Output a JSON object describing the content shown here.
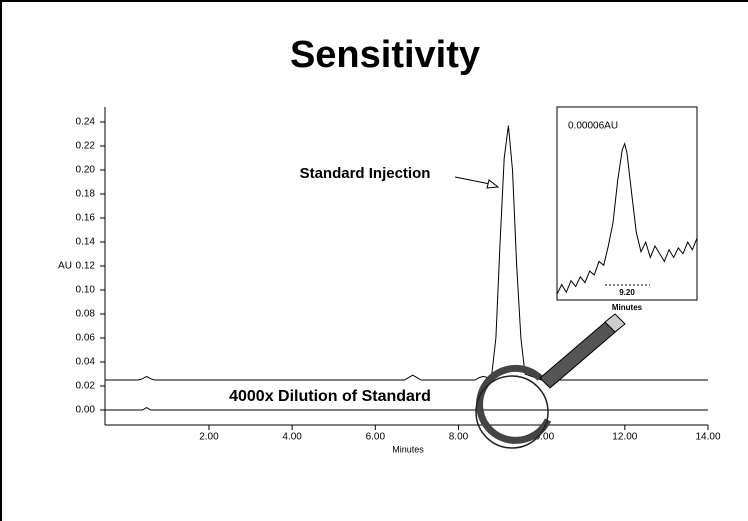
{
  "chart_data": [
    {
      "type": "line",
      "title": "Sensitivity",
      "xlabel": "Minutes",
      "ylabel": "AU",
      "annotations": [
        "Standard Injection",
        "4000x Dilution of Standard"
      ],
      "xlim": [
        -0.5,
        14.0
      ],
      "ylim": [
        -0.0125,
        0.2525
      ],
      "xticks": [
        {
          "value": 2,
          "label": "2.00"
        },
        {
          "value": 4,
          "label": "4.00"
        },
        {
          "value": 6,
          "label": "6.00"
        },
        {
          "value": 8,
          "label": "8.00"
        },
        {
          "value": 10,
          "label": "10.00"
        },
        {
          "value": 12,
          "label": "12.00"
        },
        {
          "value": 14,
          "label": "14.00"
        }
      ],
      "yticks": [
        {
          "value": 0,
          "label": "0.00"
        },
        {
          "value": 0.02,
          "label": "0.02"
        },
        {
          "value": 0.04,
          "label": "0.04"
        },
        {
          "value": 0.06,
          "label": "0.06"
        },
        {
          "value": 0.08,
          "label": "0.08"
        },
        {
          "value": 0.1,
          "label": "0.10"
        },
        {
          "value": 0.12,
          "label": "0.12"
        },
        {
          "value": 0.14,
          "label": "0.14"
        },
        {
          "value": 0.16,
          "label": "0.16"
        },
        {
          "value": 0.18,
          "label": "0.18"
        },
        {
          "value": 0.2,
          "label": "0.20"
        },
        {
          "value": 0.22,
          "label": "0.22"
        },
        {
          "value": 0.24,
          "label": "0.24"
        }
      ],
      "series": [
        {
          "color": "#000000",
          "x": [
            -0.5,
            0.3,
            0.4,
            0.5,
            0.6,
            0.7,
            1,
            3,
            6,
            6.7,
            6.8,
            6.9,
            7.0,
            7.1,
            7.5,
            8.4,
            8.5,
            8.6,
            8.7,
            8.8,
            8.9,
            9.0,
            9.1,
            9.2,
            9.3,
            9.4,
            9.5,
            9.6,
            10,
            12,
            14
          ],
          "values": [
            0.025,
            0.025,
            0.026,
            0.028,
            0.026,
            0.025,
            0.025,
            0.025,
            0.025,
            0.025,
            0.027,
            0.029,
            0.027,
            0.025,
            0.025,
            0.025,
            0.027,
            0.028,
            0.027,
            0.03,
            0.06,
            0.14,
            0.21,
            0.237,
            0.2,
            0.12,
            0.06,
            0.03,
            0.025,
            0.025,
            0.025
          ]
        },
        {
          "color": "#000000",
          "x": [
            -0.5,
            0.4,
            0.5,
            0.6,
            14
          ],
          "values": [
            0,
            0,
            0.002,
            0,
            0
          ]
        }
      ]
    },
    {
      "type": "line",
      "xlabel": "Minutes",
      "annotations": [
        "0.00006AU"
      ],
      "xlim": [
        8.9,
        9.5
      ],
      "ylim": [
        0,
        0.0001
      ],
      "xticks": [
        {
          "value": 9.2,
          "label": "9.20"
        }
      ],
      "series": [
        {
          "color": "#000000",
          "x": [
            8.9,
            8.92,
            8.94,
            8.96,
            8.98,
            9.0,
            9.02,
            9.04,
            9.06,
            9.08,
            9.1,
            9.12,
            9.14,
            9.16,
            9.18,
            9.19,
            9.2,
            9.22,
            9.24,
            9.26,
            9.28,
            9.3,
            9.32,
            9.34,
            9.36,
            9.38,
            9.4,
            9.42,
            9.44,
            9.46,
            9.48,
            9.5
          ],
          "values": [
            3e-06,
            8e-06,
            4e-06,
            1e-05,
            7e-06,
            1.2e-05,
            9e-06,
            1.5e-05,
            1.3e-05,
            2e-05,
            1.8e-05,
            2.8e-05,
            4e-05,
            6.2e-05,
            7.8e-05,
            8.1e-05,
            7.6e-05,
            5.5e-05,
            3.5e-05,
            2.5e-05,
            3e-05,
            2.2e-05,
            2.8e-05,
            2.4e-05,
            2e-05,
            2.6e-05,
            2.2e-05,
            2.7e-05,
            2.4e-05,
            3e-05,
            2.6e-05,
            3.2e-05
          ]
        }
      ]
    }
  ]
}
